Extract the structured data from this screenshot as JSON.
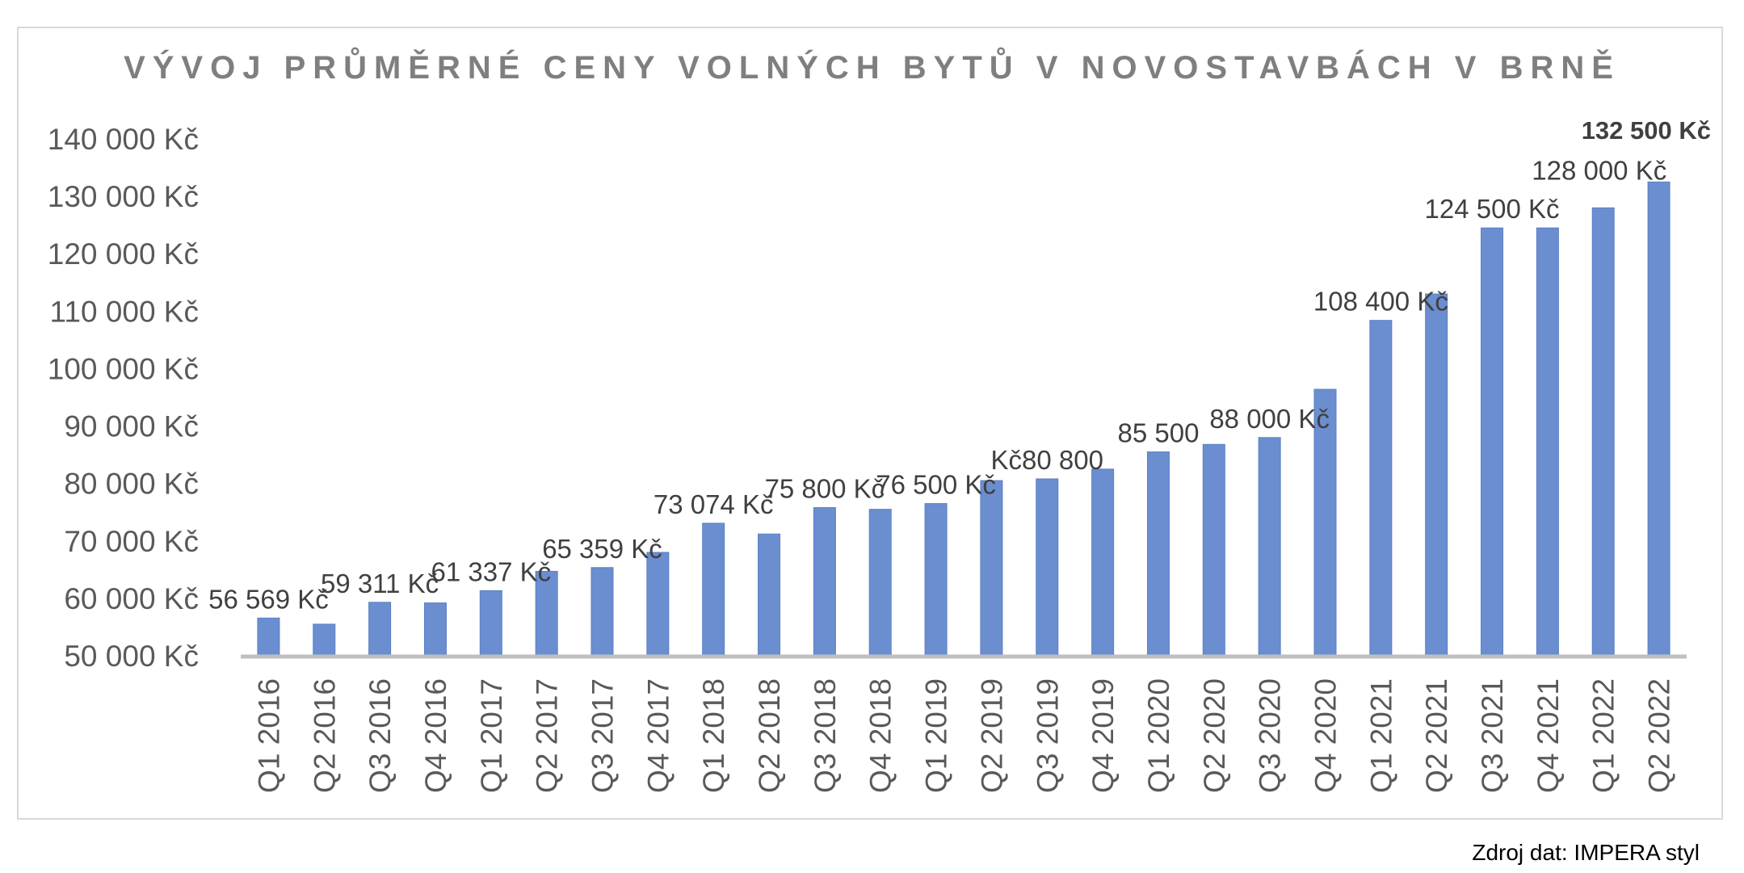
{
  "source_note": "Zdroj dat: IMPERA styl",
  "colors": {
    "bar": "#6a8ed0",
    "bar_edge": "#5b7fc4",
    "axis": "#bfbfbf",
    "frame": "#d9d9d9"
  },
  "chart_data": {
    "type": "bar",
    "title": "VÝVOJ PRŮMĚRNÉ CENY VOLNÝCH BYTŮ V NOVOSTAVBÁCH V BRNĚ",
    "xlabel": "",
    "ylabel": "",
    "ylim": [
      50000,
      140000
    ],
    "yticks": [
      {
        "value": 50000,
        "label": "50 000 Kč"
      },
      {
        "value": 60000,
        "label": "60 000 Kč"
      },
      {
        "value": 70000,
        "label": "70 000 Kč"
      },
      {
        "value": 80000,
        "label": "80 000 Kč"
      },
      {
        "value": 90000,
        "label": "90 000 Kč"
      },
      {
        "value": 100000,
        "label": "100 000 Kč"
      },
      {
        "value": 110000,
        "label": "110 000 Kč"
      },
      {
        "value": 120000,
        "label": "120 000 Kč"
      },
      {
        "value": 130000,
        "label": "130 000 Kč"
      },
      {
        "value": 140000,
        "label": "140 000 Kč"
      }
    ],
    "grid": false,
    "legend": "none",
    "categories": [
      "Q1 2016",
      "Q2 2016",
      "Q3 2016",
      "Q4 2016",
      "Q1 2017",
      "Q2 2017",
      "Q3 2017",
      "Q4 2017",
      "Q1 2018",
      "Q2 2018",
      "Q3 2018",
      "Q4 2018",
      "Q1 2019",
      "Q2 2019",
      "Q3 2019",
      "Q4 2019",
      "Q1 2020",
      "Q2 2020",
      "Q3 2020",
      "Q4 2020",
      "Q1 2021",
      "Q2 2021",
      "Q3 2021",
      "Q4 2021",
      "Q1 2022",
      "Q2 2022"
    ],
    "values": [
      56569,
      55500,
      59311,
      59200,
      61337,
      64700,
      65359,
      68000,
      73074,
      71200,
      75800,
      75500,
      76500,
      80500,
      80800,
      82500,
      85500,
      86800,
      88000,
      96400,
      108400,
      113000,
      124500,
      124500,
      128000,
      132500
    ],
    "data_labels": [
      {
        "index": 0,
        "text": "56 569 Kč"
      },
      {
        "index": 2,
        "text": "59 311 Kč"
      },
      {
        "index": 4,
        "text": "61 337 Kč"
      },
      {
        "index": 6,
        "text": "65 359 Kč"
      },
      {
        "index": 8,
        "text": "73 074 Kč"
      },
      {
        "index": 10,
        "text": "75 800 Kč"
      },
      {
        "index": 12,
        "text": "76 500 Kč"
      },
      {
        "index": 14,
        "text": "Kč80 800"
      },
      {
        "index": 16,
        "text": "85 500"
      },
      {
        "index": 18,
        "text": "88 000 Kč"
      },
      {
        "index": 20,
        "text": "108 400 Kč"
      },
      {
        "index": 22,
        "text": "124 500 Kč"
      },
      {
        "index": 24,
        "text": "128 000 Kč"
      },
      {
        "index": 25,
        "text": "132 500 Kč",
        "bold": true
      }
    ]
  }
}
